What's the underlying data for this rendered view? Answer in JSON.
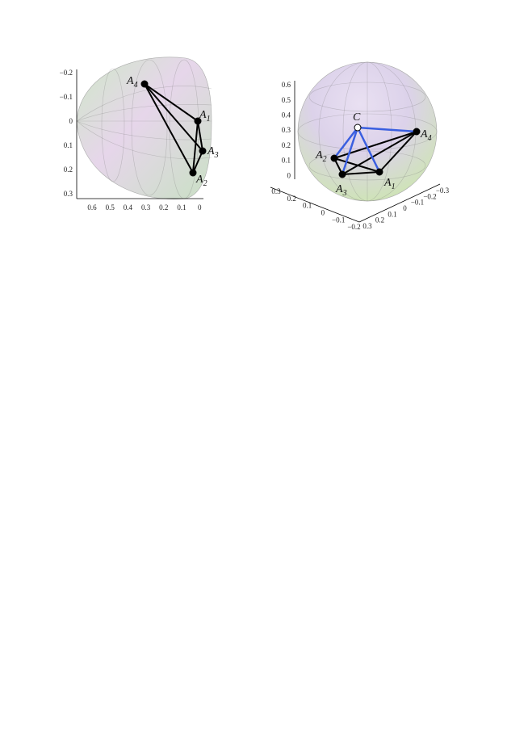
{
  "figures": [
    {
      "axis_left_ticks": [
        "−0.2",
        "−0.1",
        "0",
        "0.1",
        "0.2",
        "0.3"
      ],
      "axis_bottom_ticks": [
        "0.6",
        "0.5",
        "0.4",
        "0.3",
        "0.2",
        "0.1",
        "0"
      ],
      "points": [
        {
          "label": "A",
          "sub": "4"
        },
        {
          "label": "A",
          "sub": "1"
        },
        {
          "label": "A",
          "sub": "3"
        },
        {
          "label": "A",
          "sub": "2"
        }
      ]
    },
    {
      "axis_left_ticks": [
        "0.6",
        "0.5",
        "0.4",
        "0.3",
        "0.2",
        "0.1",
        "0"
      ],
      "axis_front_ticks": [
        "0.3",
        "0.2",
        "0.1",
        "0",
        "−0.1",
        "−0.2"
      ],
      "axis_right_ticks": [
        "−0.3",
        "−0.2",
        "−0.1",
        "0",
        "0.1",
        "0.2",
        "0.3"
      ],
      "points": [
        {
          "label": "C",
          "sub": null
        },
        {
          "label": "A",
          "sub": "4"
        },
        {
          "label": "A",
          "sub": "2"
        },
        {
          "label": "A",
          "sub": "3"
        },
        {
          "label": "A",
          "sub": "1"
        }
      ]
    }
  ]
}
